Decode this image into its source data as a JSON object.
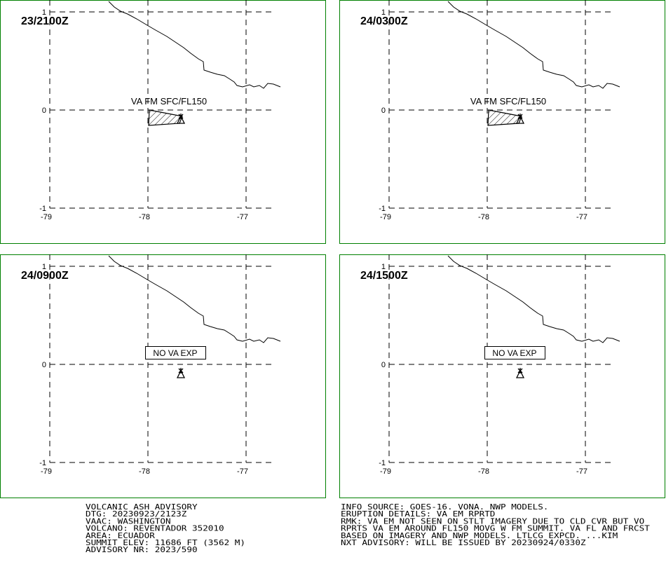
{
  "panels": [
    {
      "time": "23/2100Z",
      "ash_label": "VA FM SFC/FL150"
    },
    {
      "time": "24/0300Z",
      "ash_label": "VA FM SFC/FL150"
    },
    {
      "time": "24/0900Z",
      "box_label": "NO VA EXP"
    },
    {
      "time": "24/1500Z",
      "box_label": "NO VA EXP"
    }
  ],
  "lat_labels": [
    "1",
    "0",
    "-1"
  ],
  "lon_labels": [
    "-79",
    "-78",
    "-77"
  ],
  "advisory_left": [
    "VOLCANIC ASH ADVISORY",
    "DTG: 20230923/2123Z",
    "VAAC: WASHINGTON",
    "VOLCANO: REVENTADOR 352010",
    "AREA: ECUADOR",
    "SUMMIT ELEV: 11686 FT (3562 M)",
    "ADVISORY NR: 2023/590"
  ],
  "advisory_right": [
    "INFO SOURCE: GOES-16. VONA. NWP MODELS.",
    "ERUPTION DETAILS: VA EM RPRTD",
    "RMK: VA EM NOT SEEN ON STLT IMAGERY DUE TO CLD CVR BUT VO",
    "RPRTS VA EM AROUND FL150 MOVG W FM SUMMIT. VA FL AND FRCST",
    "BASED ON IMAGERY AND NWP MODELS. LTLCG EXPCD. ...KIM",
    "NXT ADVISORY: WILL BE ISSUED BY 20230924/0330Z"
  ]
}
